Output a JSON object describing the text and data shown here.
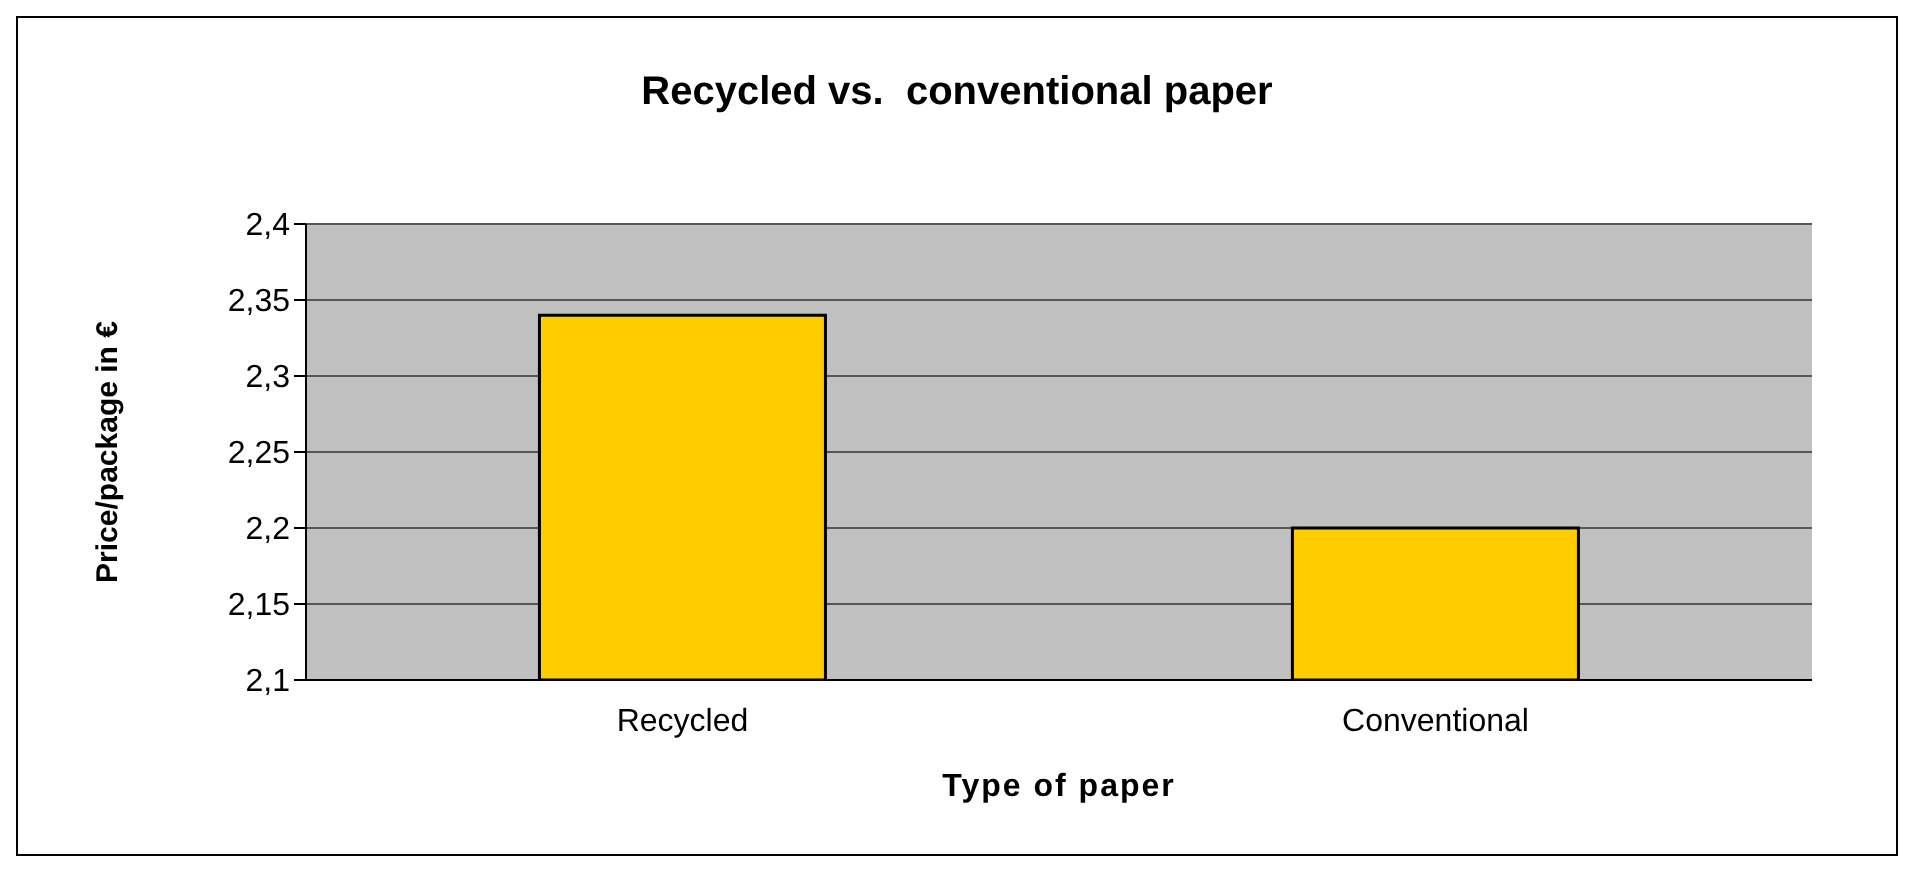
{
  "chart_data": {
    "type": "bar",
    "title": "Recycled vs.  conventional paper",
    "xlabel": "Type of paper",
    "ylabel": "Price/package in €",
    "categories": [
      "Recycled",
      "Conventional"
    ],
    "series": [
      {
        "color": "#ffcc00",
        "values": [
          2.34,
          2.2
        ]
      }
    ],
    "ylim": [
      2.1,
      2.4
    ],
    "yticks": [
      {
        "value": 2.1,
        "label": "2,1"
      },
      {
        "value": 2.15,
        "label": "2,15"
      },
      {
        "value": 2.2,
        "label": "2,2"
      },
      {
        "value": 2.25,
        "label": "2,25"
      },
      {
        "value": 2.3,
        "label": "2,3"
      },
      {
        "value": 2.35,
        "label": "2,35"
      },
      {
        "value": 2.4,
        "label": "2,4"
      }
    ],
    "grid": "y",
    "legend": false
  }
}
